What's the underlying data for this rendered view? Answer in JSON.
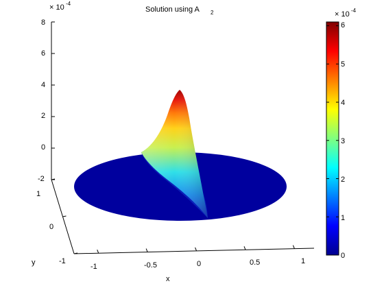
{
  "chart_data": {
    "type": "surface",
    "title_main": "Solution using A",
    "title_sub": "2",
    "xlabel": "x",
    "ylabel": "y",
    "x_ticks": [
      "-1",
      "-0.5",
      "0",
      "0.5",
      "1"
    ],
    "y_ticks": [
      "-1",
      "0",
      "1"
    ],
    "z_ticks": [
      "-2",
      "0",
      "2",
      "4",
      "6",
      "8"
    ],
    "z_scale_base": "× 10",
    "z_scale_exp": "-4",
    "zlim": [
      -2,
      8
    ],
    "domain": "unit disk",
    "peak": {
      "x": 0.0,
      "y": 0.5,
      "z": 6.1
    },
    "colorbar": {
      "ticks": [
        "0",
        "1",
        "2",
        "3",
        "4",
        "5",
        "6"
      ],
      "range": [
        0,
        6.1
      ],
      "scale_base": "× 10",
      "scale_exp": "-4",
      "colormap": "jet"
    },
    "grid": false
  }
}
